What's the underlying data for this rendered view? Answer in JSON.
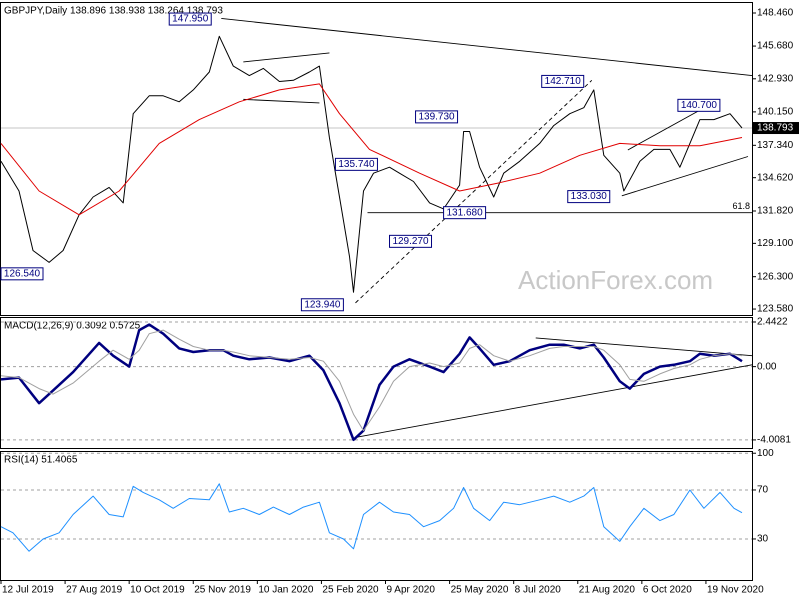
{
  "watermark": "ActionForex.com",
  "chart_data": [
    {
      "type": "line",
      "title": "GBPJPY,Daily  138.896 138.938 138.264 138.793",
      "xlim": [
        0,
        375
      ],
      "ylim": [
        123.08,
        149.3
      ],
      "grid": false,
      "yticks": [
        {
          "value": 148.46,
          "label": "148.460"
        },
        {
          "value": 145.68,
          "label": "145.680"
        },
        {
          "value": 142.93,
          "label": "142.930"
        },
        {
          "value": 140.15,
          "label": "140.150"
        },
        {
          "value": 137.34,
          "label": "137.340"
        },
        {
          "value": 134.62,
          "label": "134.620"
        },
        {
          "value": 131.82,
          "label": "131.820"
        },
        {
          "value": 129.1,
          "label": "129.100"
        },
        {
          "value": 126.3,
          "label": "126.300"
        },
        {
          "value": 123.58,
          "label": "123.580"
        }
      ],
      "series": [
        {
          "color": "#000000",
          "x": [
            0,
            9,
            16,
            24,
            31,
            39,
            46,
            54,
            61,
            66,
            74,
            81,
            89,
            96,
            104,
            109,
            116,
            124,
            131,
            139,
            146,
            154,
            159,
            164,
            169,
            174,
            176,
            181,
            186,
            194,
            199,
            206,
            214,
            221,
            229,
            231,
            234,
            239,
            246,
            251,
            259,
            269,
            276,
            284,
            291,
            296,
            301,
            309,
            311,
            319,
            326,
            334,
            339,
            344,
            349,
            356,
            364,
            370
          ],
          "values": [
            136.0,
            133.5,
            128.5,
            127.5,
            128.5,
            131.5,
            133.0,
            133.8,
            132.5,
            140.0,
            141.5,
            141.5,
            141.0,
            142.0,
            143.5,
            146.5,
            144.0,
            143.2,
            143.8,
            142.7,
            142.8,
            143.5,
            144.0,
            138.0,
            133.0,
            128.0,
            125.0,
            133.5,
            135.0,
            135.5,
            135.0,
            134.3,
            132.5,
            132.0,
            134.0,
            138.5,
            138.5,
            135.5,
            133.0,
            135.0,
            136.0,
            137.5,
            139.0,
            140.0,
            140.5,
            142.0,
            136.5,
            135.0,
            133.5,
            136.0,
            137.0,
            137.0,
            135.5,
            137.5,
            139.5,
            139.5,
            140.0,
            138.793
          ]
        },
        {
          "color": "#e00000",
          "x": [
            0,
            19,
            39,
            59,
            79,
            99,
            119,
            139,
            159,
            169,
            184,
            209,
            229,
            249,
            269,
            289,
            309,
            329,
            349,
            370
          ],
          "values": [
            137.5,
            133.5,
            131.5,
            133.5,
            137.5,
            139.5,
            141.0,
            142.0,
            142.5,
            140.0,
            137.0,
            135.0,
            133.5,
            134.2,
            135.0,
            136.5,
            137.5,
            137.3,
            137.3,
            138.0
          ]
        }
      ],
      "annotations": [
        {
          "label": "147.950",
          "value": 147.95,
          "x": 84
        },
        {
          "label": "126.540",
          "value": 126.54,
          "x": 0
        },
        {
          "label": "135.740",
          "value": 135.74,
          "x": 167
        },
        {
          "label": "123.940",
          "value": 123.94,
          "x": 150
        },
        {
          "label": "129.270",
          "value": 129.27,
          "x": 194
        },
        {
          "label": "131.680",
          "value": 131.68,
          "x": 221
        },
        {
          "label": "139.730",
          "value": 139.73,
          "x": 207
        },
        {
          "label": "142.710",
          "value": 142.71,
          "x": 270
        },
        {
          "label": "133.030",
          "value": 133.03,
          "x": 283
        },
        {
          "label": "140.700",
          "value": 140.7,
          "x": 338
        }
      ],
      "fib_level": 61.8,
      "fib_price": 131.68,
      "fib_start": 183,
      "trendlines": [
        {
          "x": [
            110,
            375
          ],
          "y": [
            148.0,
            143.2
          ],
          "dashed": false
        },
        {
          "x": [
            121,
            164
          ],
          "y": [
            144.35,
            145.1
          ],
          "dashed": false
        },
        {
          "x": [
            121,
            159
          ],
          "y": [
            141.2,
            140.9
          ],
          "dashed": false
        },
        {
          "x": [
            177,
            295
          ],
          "y": [
            124.1,
            142.8
          ],
          "dashed": true
        },
        {
          "x": [
            310,
            373
          ],
          "y": [
            133.1,
            136.4
          ],
          "dashed": false
        },
        {
          "x": [
            313,
            349
          ],
          "y": [
            136.95,
            140.3
          ],
          "dashed": false
        }
      ]
    },
    {
      "type": "line",
      "title": "MACD(12,26,9) 0.3092 0.5725",
      "xlim": [
        0,
        375
      ],
      "ylim": [
        -4.45,
        2.66
      ],
      "grid": true,
      "yticks": [
        2.4422,
        {
          "value": 0,
          "label": "0.00"
        },
        -4.0081
      ],
      "series": [
        {
          "color": "#00007f",
          "x": [
            0,
            9,
            19,
            26,
            36,
            49,
            56,
            64,
            69,
            74,
            81,
            89,
            96,
            104,
            111,
            116,
            124,
            134,
            144,
            154,
            161,
            169,
            176,
            181,
            189,
            196,
            204,
            214,
            221,
            229,
            234,
            239,
            246,
            254,
            264,
            274,
            281,
            289,
            296,
            301,
            309,
            314,
            321,
            329,
            336,
            344,
            349,
            356,
            364,
            370
          ],
          "values": [
            -0.7,
            -0.6,
            -2.0,
            -1.3,
            -0.3,
            1.3,
            0.6,
            0.0,
            2.0,
            2.3,
            1.8,
            1.0,
            0.8,
            0.9,
            0.9,
            0.6,
            0.4,
            0.5,
            0.3,
            0.6,
            -0.2,
            -2.0,
            -4.0,
            -3.5,
            -1.0,
            0.0,
            0.4,
            0.0,
            -0.3,
            0.7,
            1.6,
            1.0,
            0.1,
            0.3,
            0.9,
            1.2,
            1.2,
            1.0,
            1.2,
            0.5,
            -0.8,
            -1.2,
            -0.4,
            0.0,
            0.1,
            0.3,
            0.7,
            0.6,
            0.7,
            0.3
          ]
        },
        {
          "color": "#a0a0a0",
          "x": [
            0,
            9,
            19,
            26,
            36,
            49,
            56,
            64,
            69,
            74,
            81,
            89,
            96,
            104,
            111,
            116,
            124,
            134,
            144,
            154,
            161,
            169,
            176,
            181,
            189,
            196,
            204,
            214,
            221,
            229,
            234,
            239,
            246,
            254,
            264,
            274,
            281,
            289,
            296,
            301,
            309,
            314,
            321,
            329,
            336,
            344,
            349,
            356,
            364,
            370
          ],
          "values": [
            -0.5,
            -0.6,
            -1.2,
            -1.5,
            -0.9,
            0.3,
            0.9,
            0.4,
            0.9,
            1.8,
            2.0,
            1.5,
            1.1,
            0.9,
            0.9,
            0.8,
            0.6,
            0.5,
            0.4,
            0.5,
            0.3,
            -0.8,
            -2.6,
            -3.5,
            -2.2,
            -0.8,
            0.0,
            0.2,
            0.0,
            0.2,
            1.0,
            1.2,
            0.6,
            0.3,
            0.6,
            1.0,
            1.1,
            1.1,
            1.1,
            0.9,
            0.1,
            -0.7,
            -0.8,
            -0.4,
            -0.1,
            0.1,
            0.4,
            0.6,
            0.7,
            0.6
          ]
        }
      ],
      "trendlines": [
        {
          "x": [
            178,
            375
          ],
          "y": [
            -3.85,
            0.1
          ],
          "dashed": false
        },
        {
          "x": [
            267,
            375
          ],
          "y": [
            1.57,
            0.6
          ],
          "dashed": false
        }
      ]
    },
    {
      "type": "line",
      "title": "RSI(14) 51.4065",
      "xlim": [
        0,
        375
      ],
      "ylim": [
        -3.5,
        101
      ],
      "grid": true,
      "yticks": [
        100,
        70,
        30
      ],
      "xticks": [
        {
          "value": 0,
          "label": "12 Jul 2019"
        },
        {
          "value": 32,
          "label": "27 Aug 2019"
        },
        {
          "value": 64,
          "label": "10 Oct 2019"
        },
        {
          "value": 96,
          "label": "25 Nov 2019"
        },
        {
          "value": 128,
          "label": "10 Jan 2020"
        },
        {
          "value": 160,
          "label": "25 Feb 2020"
        },
        {
          "value": 192,
          "label": "9 Apr 2020"
        },
        {
          "value": 224,
          "label": "25 May 2020"
        },
        {
          "value": 256,
          "label": "8 Jul 2020"
        },
        {
          "value": 288,
          "label": "21 Aug 2020"
        },
        {
          "value": 320,
          "label": "6 Oct 2020"
        },
        {
          "value": 352,
          "label": "19 Nov 2020"
        }
      ],
      "series": [
        {
          "color": "#1e90ff",
          "x": [
            0,
            6,
            14,
            21,
            29,
            36,
            46,
            54,
            61,
            66,
            71,
            79,
            86,
            94,
            104,
            109,
            114,
            121,
            129,
            136,
            144,
            151,
            159,
            164,
            171,
            176,
            181,
            189,
            196,
            204,
            211,
            219,
            226,
            231,
            236,
            244,
            251,
            259,
            269,
            276,
            284,
            291,
            296,
            301,
            309,
            314,
            321,
            329,
            336,
            344,
            351,
            359,
            366,
            370
          ],
          "values": [
            40,
            35,
            20,
            30,
            35,
            50,
            65,
            50,
            48,
            73,
            68,
            62,
            55,
            63,
            62,
            75,
            52,
            55,
            50,
            56,
            50,
            56,
            60,
            35,
            30,
            22,
            50,
            60,
            52,
            50,
            40,
            45,
            55,
            72,
            55,
            45,
            60,
            58,
            62,
            65,
            60,
            65,
            72,
            40,
            28,
            40,
            55,
            45,
            50,
            70,
            55,
            68,
            55,
            51.4065
          ]
        }
      ]
    }
  ]
}
